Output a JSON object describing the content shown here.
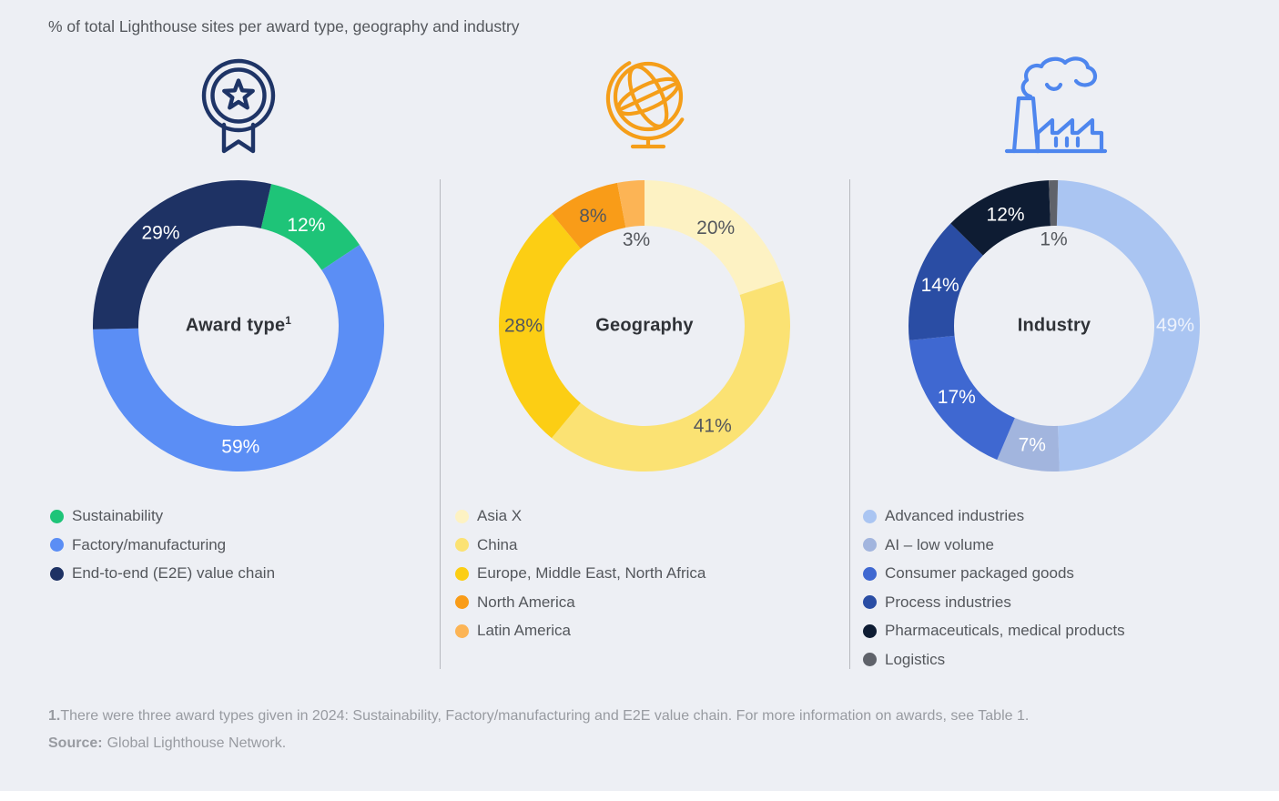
{
  "title": "% of total Lighthouse sites per award type, geography and industry",
  "chart_data": [
    {
      "type": "pie",
      "subtype": "donut",
      "title": "Award type",
      "title_sup": "1",
      "icon": "award-medal-icon",
      "rotation_deg": 13,
      "legend_position": "bottom-left",
      "labels": [
        "Sustainability",
        "Factory/manufacturing",
        "End-to-end (E2E) value chain"
      ],
      "values": [
        12,
        59,
        29
      ],
      "pct_labels": [
        "12%",
        "59%",
        "29%"
      ],
      "colors": [
        "#1ec478",
        "#5b8ef5",
        "#1e3264"
      ],
      "pct_label_colors": [
        "#ffffff",
        "#ffffff",
        "#ffffff"
      ],
      "pct_label_inside_hole": [
        false,
        false,
        false
      ],
      "pct_label_angles": [
        34,
        179,
        320
      ]
    },
    {
      "type": "pie",
      "subtype": "donut",
      "title": "Geography",
      "icon": "globe-icon",
      "rotation_deg": 0,
      "legend_position": "bottom-left",
      "labels": [
        "Asia X",
        "China",
        "Europe, Middle East, North Africa",
        "North America",
        "Latin America"
      ],
      "values": [
        20,
        41,
        28,
        8,
        3
      ],
      "pct_labels": [
        "20%",
        "41%",
        "28%",
        "8%",
        "3%"
      ],
      "colors": [
        "#fdf2c3",
        "#fbe273",
        "#fcce14",
        "#f99c18",
        "#fcb455"
      ],
      "pct_label_colors": [
        "#54575c",
        "#54575c",
        "#54575c",
        "#54575c",
        "#54575c"
      ],
      "pct_label_inside_hole": [
        false,
        false,
        false,
        false,
        true
      ]
    },
    {
      "type": "pie",
      "subtype": "donut",
      "title": "Industry",
      "icon": "factory-icon",
      "rotation_deg": 1.5,
      "legend_position": "bottom-left",
      "labels": [
        "Advanced industries",
        "AI – low volume",
        "Consumer packaged goods",
        "Process industries",
        "Pharmaceuticals, medical products",
        "Logistics"
      ],
      "values": [
        49,
        7,
        17,
        14,
        12,
        1
      ],
      "pct_labels": [
        "49%",
        "7%",
        "17%",
        "14%",
        "12%",
        "1%"
      ],
      "colors": [
        "#aac5f2",
        "#a2b5de",
        "#3f68d1",
        "#2a4da4",
        "#0e1c33",
        "#5f626a"
      ],
      "pct_label_colors": [
        "#edf2fc",
        "#ffffff",
        "#ffffff",
        "#ffffff",
        "#ffffff",
        "#54575c"
      ],
      "pct_label_inside_hole": [
        false,
        false,
        false,
        false,
        false,
        true
      ]
    }
  ],
  "footnote": {
    "marker": "1.",
    "text": "There were three award types given in 2024: Sustainability, Factory/manufacturing and E2E value chain. For more information on awards, see Table 1.",
    "source_label": "Source:",
    "source_text": "Global Lighthouse Network."
  },
  "colors": {
    "background": "#edeff4",
    "text_primary": "#54575c",
    "text_muted": "#989ba1",
    "divider": "#b7b9bf",
    "award_icon": "#1e3466",
    "globe_icon": "#f59e19",
    "factory_icon": "#4e86ee"
  }
}
